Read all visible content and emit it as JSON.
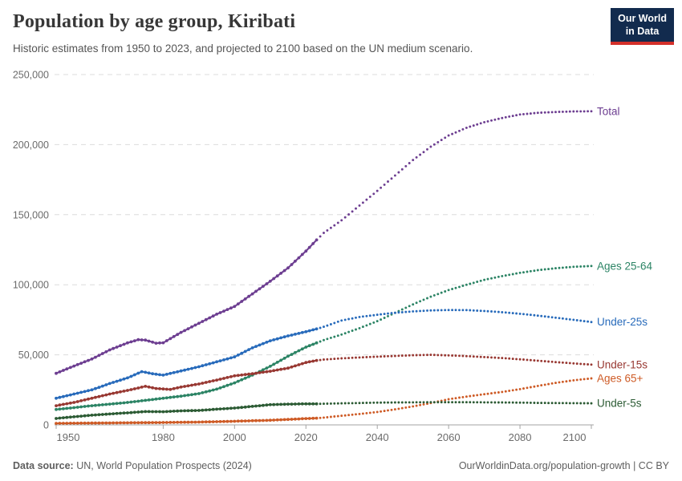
{
  "header": {
    "title": "Population by age group, Kiribati",
    "subtitle": "Historic estimates from 1950 to 2023, and projected to 2100 based on the UN medium scenario.",
    "logo": {
      "line1": "Our World",
      "line2": "in Data",
      "bg": "#122B4E",
      "accent": "#D4302A"
    }
  },
  "footer": {
    "source_label": "Data source:",
    "source_text": " UN, World Population Prospects (2024)",
    "right_text": "OurWorldinData.org/population-growth | CC BY"
  },
  "chart_data": {
    "type": "line",
    "title": "Population by age group, Kiribati",
    "xlabel": "",
    "ylabel": "",
    "xlim": [
      1950,
      2100
    ],
    "ylim": [
      0,
      250000
    ],
    "grid": "dashed-horizontal",
    "legend_position": "right-edge-labels",
    "projection_start": 2023,
    "x_ticks": [
      {
        "value": 1950,
        "label": "1950"
      },
      {
        "value": 1980,
        "label": "1980"
      },
      {
        "value": 2000,
        "label": "2000"
      },
      {
        "value": 2020,
        "label": "2020"
      },
      {
        "value": 2040,
        "label": "2040"
      },
      {
        "value": 2060,
        "label": "2060"
      },
      {
        "value": 2080,
        "label": "2080"
      },
      {
        "value": 2100,
        "label": "2100"
      }
    ],
    "y_ticks": [
      {
        "value": 0,
        "label": "0"
      },
      {
        "value": 50000,
        "label": "50,000"
      },
      {
        "value": 100000,
        "label": "100,000"
      },
      {
        "value": 150000,
        "label": "150,000"
      },
      {
        "value": 200000,
        "label": "200,000"
      },
      {
        "value": 250000,
        "label": "250,000"
      }
    ],
    "series": [
      {
        "name": "Total",
        "color": "#6D3E91",
        "points": [
          [
            1950,
            36800
          ],
          [
            1955,
            42000
          ],
          [
            1960,
            47000
          ],
          [
            1965,
            53500
          ],
          [
            1970,
            58500
          ],
          [
            1973,
            60800
          ],
          [
            1975,
            60500
          ],
          [
            1978,
            58300
          ],
          [
            1980,
            58600
          ],
          [
            1985,
            66000
          ],
          [
            1990,
            72500
          ],
          [
            1995,
            79000
          ],
          [
            2000,
            84500
          ],
          [
            2005,
            93500
          ],
          [
            2010,
            102500
          ],
          [
            2015,
            112000
          ],
          [
            2020,
            124000
          ],
          [
            2023,
            132000
          ],
          [
            2025,
            137000
          ],
          [
            2030,
            146000
          ],
          [
            2035,
            156500
          ],
          [
            2040,
            167000
          ],
          [
            2045,
            178000
          ],
          [
            2050,
            189000
          ],
          [
            2055,
            198500
          ],
          [
            2060,
            206500
          ],
          [
            2065,
            212000
          ],
          [
            2070,
            216000
          ],
          [
            2075,
            219000
          ],
          [
            2080,
            221500
          ],
          [
            2085,
            222700
          ],
          [
            2090,
            223300
          ],
          [
            2095,
            223700
          ],
          [
            2100,
            223800
          ]
        ]
      },
      {
        "name": "Ages 25-64",
        "color": "#2C8465",
        "points": [
          [
            1950,
            11000
          ],
          [
            1955,
            12300
          ],
          [
            1960,
            13700
          ],
          [
            1965,
            14800
          ],
          [
            1970,
            16000
          ],
          [
            1975,
            17500
          ],
          [
            1980,
            19000
          ],
          [
            1985,
            20500
          ],
          [
            1990,
            22300
          ],
          [
            1995,
            25500
          ],
          [
            2000,
            30000
          ],
          [
            2005,
            35500
          ],
          [
            2010,
            41800
          ],
          [
            2015,
            49000
          ],
          [
            2020,
            55500
          ],
          [
            2023,
            58500
          ],
          [
            2025,
            60500
          ],
          [
            2030,
            64500
          ],
          [
            2035,
            69000
          ],
          [
            2040,
            74000
          ],
          [
            2045,
            80000
          ],
          [
            2050,
            86000
          ],
          [
            2055,
            91500
          ],
          [
            2060,
            96200
          ],
          [
            2065,
            100000
          ],
          [
            2070,
            103500
          ],
          [
            2075,
            106200
          ],
          [
            2080,
            108500
          ],
          [
            2085,
            110400
          ],
          [
            2090,
            111800
          ],
          [
            2095,
            112800
          ],
          [
            2100,
            113400
          ]
        ]
      },
      {
        "name": "Under-25s",
        "color": "#286BBB",
        "points": [
          [
            1950,
            19000
          ],
          [
            1955,
            22000
          ],
          [
            1960,
            25000
          ],
          [
            1965,
            29500
          ],
          [
            1970,
            33500
          ],
          [
            1974,
            38000
          ],
          [
            1977,
            36500
          ],
          [
            1980,
            35500
          ],
          [
            1985,
            38500
          ],
          [
            1990,
            41500
          ],
          [
            1995,
            45000
          ],
          [
            2000,
            48500
          ],
          [
            2005,
            55000
          ],
          [
            2010,
            60000
          ],
          [
            2015,
            63500
          ],
          [
            2020,
            66500
          ],
          [
            2023,
            68500
          ],
          [
            2025,
            70000
          ],
          [
            2030,
            74500
          ],
          [
            2035,
            77000
          ],
          [
            2040,
            78600
          ],
          [
            2045,
            80000
          ],
          [
            2050,
            81000
          ],
          [
            2055,
            81700
          ],
          [
            2060,
            82000
          ],
          [
            2065,
            81900
          ],
          [
            2070,
            81300
          ],
          [
            2075,
            80400
          ],
          [
            2080,
            79300
          ],
          [
            2085,
            78000
          ],
          [
            2090,
            76500
          ],
          [
            2095,
            75000
          ],
          [
            2100,
            73400
          ]
        ]
      },
      {
        "name": "Under-15s",
        "color": "#983832",
        "points": [
          [
            1950,
            13700
          ],
          [
            1955,
            16000
          ],
          [
            1960,
            19000
          ],
          [
            1965,
            22000
          ],
          [
            1970,
            24600
          ],
          [
            1975,
            27500
          ],
          [
            1978,
            26000
          ],
          [
            1982,
            25300
          ],
          [
            1985,
            27000
          ],
          [
            1990,
            29200
          ],
          [
            1995,
            32000
          ],
          [
            2000,
            35000
          ],
          [
            2005,
            36500
          ],
          [
            2010,
            38300
          ],
          [
            2015,
            40500
          ],
          [
            2020,
            44500
          ],
          [
            2023,
            46000
          ],
          [
            2025,
            46600
          ],
          [
            2030,
            47500
          ],
          [
            2035,
            48100
          ],
          [
            2040,
            48700
          ],
          [
            2045,
            49200
          ],
          [
            2050,
            49700
          ],
          [
            2055,
            50000
          ],
          [
            2060,
            49600
          ],
          [
            2065,
            49100
          ],
          [
            2070,
            48400
          ],
          [
            2075,
            47700
          ],
          [
            2080,
            46800
          ],
          [
            2085,
            45800
          ],
          [
            2090,
            44800
          ],
          [
            2095,
            43900
          ],
          [
            2100,
            43000
          ]
        ]
      },
      {
        "name": "Ages 65+",
        "color": "#CE5B26",
        "points": [
          [
            1950,
            1100
          ],
          [
            1955,
            1200
          ],
          [
            1960,
            1300
          ],
          [
            1965,
            1400
          ],
          [
            1970,
            1500
          ],
          [
            1975,
            1600
          ],
          [
            1980,
            1700
          ],
          [
            1985,
            1850
          ],
          [
            1990,
            2000
          ],
          [
            1995,
            2300
          ],
          [
            2000,
            2600
          ],
          [
            2005,
            2950
          ],
          [
            2010,
            3300
          ],
          [
            2015,
            3900
          ],
          [
            2020,
            4500
          ],
          [
            2023,
            4800
          ],
          [
            2025,
            5200
          ],
          [
            2030,
            6500
          ],
          [
            2035,
            7800
          ],
          [
            2040,
            9200
          ],
          [
            2045,
            11100
          ],
          [
            2050,
            13200
          ],
          [
            2055,
            15600
          ],
          [
            2060,
            18300
          ],
          [
            2065,
            20200
          ],
          [
            2070,
            21900
          ],
          [
            2075,
            23500
          ],
          [
            2080,
            25500
          ],
          [
            2085,
            27800
          ],
          [
            2090,
            30000
          ],
          [
            2095,
            31800
          ],
          [
            2100,
            33200
          ]
        ]
      },
      {
        "name": "Under-5s",
        "color": "#2C5B34",
        "points": [
          [
            1950,
            4600
          ],
          [
            1955,
            5800
          ],
          [
            1960,
            6900
          ],
          [
            1965,
            7800
          ],
          [
            1970,
            8600
          ],
          [
            1975,
            9500
          ],
          [
            1980,
            9400
          ],
          [
            1985,
            10000
          ],
          [
            1990,
            10300
          ],
          [
            1995,
            11200
          ],
          [
            2000,
            12000
          ],
          [
            2005,
            13200
          ],
          [
            2010,
            14400
          ],
          [
            2015,
            14800
          ],
          [
            2020,
            15000
          ],
          [
            2023,
            15000
          ],
          [
            2025,
            15100
          ],
          [
            2030,
            15400
          ],
          [
            2035,
            15600
          ],
          [
            2040,
            15900
          ],
          [
            2045,
            16000
          ],
          [
            2050,
            16100
          ],
          [
            2055,
            16200
          ],
          [
            2060,
            16200
          ],
          [
            2065,
            16200
          ],
          [
            2070,
            16100
          ],
          [
            2075,
            16000
          ],
          [
            2080,
            15900
          ],
          [
            2085,
            15700
          ],
          [
            2090,
            15600
          ],
          [
            2095,
            15500
          ],
          [
            2100,
            15400
          ]
        ]
      }
    ],
    "colors": {
      "grid": "#dcdcdc",
      "axis": "#a3a3a3",
      "tick_text": "#6b6b6b"
    }
  }
}
